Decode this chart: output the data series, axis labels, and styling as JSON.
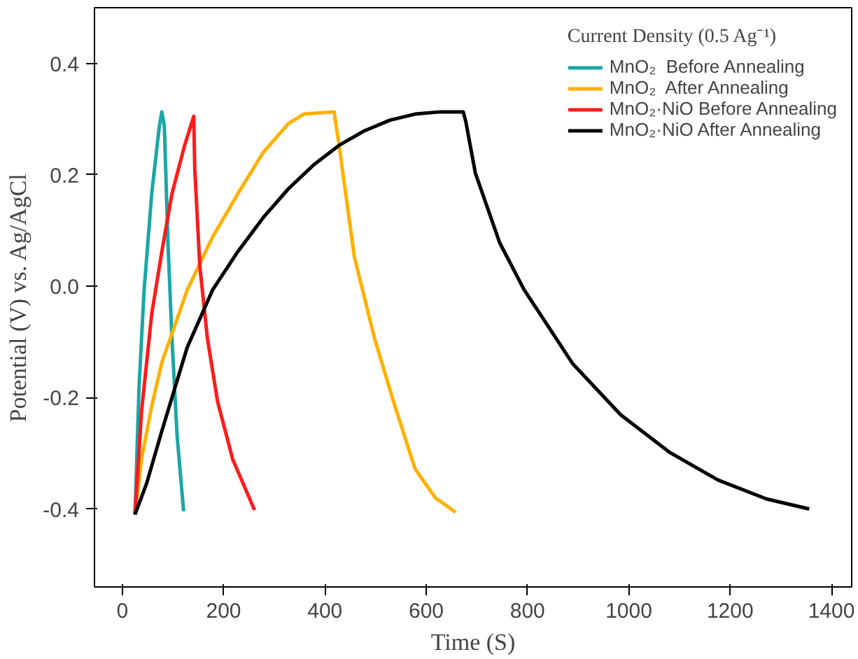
{
  "chart_data": {
    "type": "line",
    "xlabel": "Time (S)",
    "ylabel": "Potential (V) vs. Ag/AgCl",
    "legend_title": "Current Density (0.5 Ag⁻¹)",
    "legend": "top right",
    "grid": false,
    "xlim": [
      -55,
      1440
    ],
    "ylim": [
      -0.54,
      0.5
    ],
    "xticks": [
      0,
      200,
      400,
      600,
      800,
      1000,
      1200,
      1400
    ],
    "yticks": [
      {
        "value": -0.4,
        "label": "-0.4"
      },
      {
        "value": -0.2,
        "label": "-0.2"
      },
      {
        "value": 0,
        "label": "0.0"
      },
      {
        "value": 0.2,
        "label": "0.2"
      },
      {
        "value": 0.4,
        "label": "0.4"
      }
    ],
    "series": [
      {
        "name": "MnO₂  Before Annealing",
        "color": "#1aa6a6",
        "x": [
          25,
          33,
          43,
          58,
          73,
          78,
          83,
          90,
          98,
          108,
          121
        ],
        "values": [
          -0.41,
          -0.18,
          -0.007,
          0.166,
          0.287,
          0.313,
          0.287,
          0.08,
          -0.094,
          -0.267,
          -0.404
        ]
      },
      {
        "name": "MnO₂  After Annealing",
        "color": "#ffb000",
        "x": [
          25,
          38,
          58,
          78,
          128,
          178,
          228,
          278,
          328,
          358,
          418,
          428,
          458,
          498,
          538,
          578,
          618,
          658
        ],
        "values": [
          -0.41,
          -0.31,
          -0.215,
          -0.137,
          -0.007,
          0.088,
          0.166,
          0.24,
          0.292,
          0.309,
          0.313,
          0.253,
          0.053,
          -0.094,
          -0.215,
          -0.328,
          -0.38,
          -0.406
        ]
      },
      {
        "name": "MnO₂·NiO Before Annealing",
        "color": "#ff1a1a",
        "x": [
          25,
          38,
          58,
          78,
          98,
          123,
          141,
          143,
          153,
          168,
          188,
          218,
          261
        ],
        "values": [
          -0.41,
          -0.224,
          -0.05,
          0.062,
          0.166,
          0.253,
          0.305,
          0.21,
          0.036,
          -0.094,
          -0.207,
          -0.311,
          -0.402
        ]
      },
      {
        "name": "MnO₂·NiO After Annealing",
        "color": "#000000",
        "x": [
          25,
          48,
          78,
          128,
          178,
          228,
          278,
          328,
          378,
          428,
          478,
          528,
          578,
          628,
          673,
          678,
          697,
          745,
          793,
          889,
          984,
          1080,
          1176,
          1272,
          1356
        ],
        "values": [
          -0.41,
          -0.354,
          -0.26,
          -0.11,
          -0.007,
          0.062,
          0.123,
          0.175,
          0.218,
          0.253,
          0.279,
          0.298,
          0.309,
          0.313,
          0.313,
          0.296,
          0.203,
          0.078,
          -0.006,
          -0.139,
          -0.231,
          -0.298,
          -0.348,
          -0.382,
          -0.4
        ]
      }
    ]
  }
}
